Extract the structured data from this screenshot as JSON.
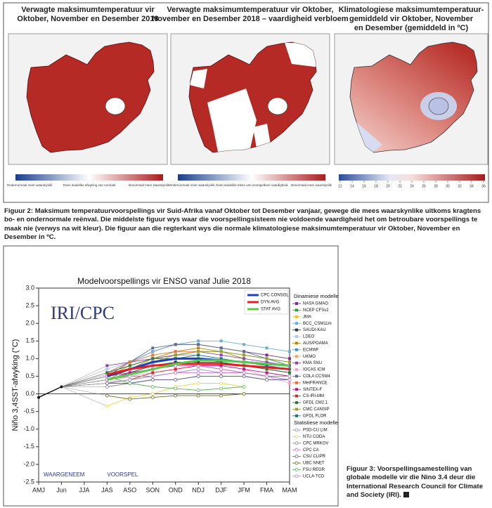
{
  "figure2": {
    "panels": [
      {
        "title": [
          "Verwagte maksimumtemperatuur vir",
          "Oktober, November en Desember 2018"
        ],
        "colorbar_labels": [
          "Ondernormaal meer waarskynlik",
          "Geen duidelike afwyking van normaal",
          "Bonormaal meer waarskynlik"
        ]
      },
      {
        "title": [
          "Verwagte maksimumtemperatuur vir Oktober,",
          "November en Desember 2018 – vaardigheid verbloem"
        ],
        "colorbar_labels": [
          "Ondernormaal meer waarskynlik",
          "Geen duidelike teken van voorspelbare vaardigheid",
          "Bonormaal meer waarskynlik"
        ]
      },
      {
        "title": [
          "Klimatologiese maksimumtemperatuur-",
          "gemiddeld vir Oktober, November",
          "en Desember (gemiddeld in ºC)"
        ],
        "colorbar_ticks": [
          12,
          14,
          16,
          18,
          20,
          22,
          24,
          26,
          28,
          30,
          32,
          34,
          36
        ]
      }
    ],
    "caption": "Figuur 2: Maksimum temperatuurvoorspellings vir Suid-Afrika vanaf Oktober tot Desember vanjaar, gewege die mees waarskynlike uitkoms kragtens bo- en ondernormale reënval. Die middelste figuur wys waar die voorspellingsisteem nie voldoende vaardigheid het om betroubare voorspellings te maak nie (verwys na wit kleur). Die figuur aan die regterkant wys die normale klimatologiese maksimumtemperatuur vir Oktober, November en Desember in ºC."
  },
  "figure3_caption": "Figuur 3: Voorspellingsamestelling van globale modelle vir die Nino 3.4 deur die International Research Council for Climate and Society (IRI).",
  "chart_data": {
    "type": "line",
    "title": "Modelvoorspellings vir ENSO vanaf Julie 2018",
    "y_label": "Niño 3,4SST-afwyking (°C)",
    "annotations": [
      "IRI/CPC",
      "WAARGENEEM",
      "VOORSPEL"
    ],
    "legend_titles": [
      "Dinamiese modelle",
      "Statistiese modelle"
    ],
    "categories": [
      "AMJ",
      "Jun",
      "JJA",
      "JAS",
      "ASO",
      "SON",
      "OND",
      "NDJ",
      "DJF",
      "JFM",
      "FMA",
      "MAM"
    ],
    "ylim": [
      -2.5,
      3.0
    ],
    "yticks": [
      -2.5,
      {
        "value": -2,
        "label": "-2.0"
      },
      -1.5,
      {
        "value": -1,
        "label": "-1.0"
      },
      -0.5,
      {
        "value": 0,
        "label": "0.0"
      },
      0.5,
      {
        "value": 1,
        "label": "1.0"
      },
      1.5,
      {
        "value": 2,
        "label": "2.0"
      },
      2.5,
      {
        "value": 3,
        "label": "3.0"
      }
    ],
    "zero_line": true,
    "observed": [
      -0.1,
      0.2,
      null,
      null,
      null,
      null,
      null,
      null,
      null,
      null,
      null,
      null
    ],
    "series": [
      {
        "name": "CPC CONSOL",
        "color": "#1f3fbf",
        "width": 3,
        "values": [
          null,
          null,
          null,
          0.5,
          0.7,
          0.9,
          1.0,
          1.0,
          0.95,
          0.9,
          0.85,
          0.8
        ]
      },
      {
        "name": "DYN AVG",
        "color": "#e02020",
        "width": 3,
        "values": [
          null,
          null,
          null,
          0.55,
          0.7,
          0.8,
          0.85,
          0.85,
          0.85,
          0.8,
          0.75,
          0.7
        ]
      },
      {
        "name": "STAT AVG",
        "color": "#5cc84c",
        "width": 3,
        "values": [
          null,
          null,
          null,
          0.4,
          0.55,
          0.7,
          0.85,
          0.95,
          0.95,
          0.9,
          0.85,
          0.8
        ]
      },
      {
        "name": "NASA GMAO",
        "group": 0,
        "color": "#7b2d8e",
        "values": [
          null,
          null,
          null,
          0.6,
          0.9,
          1.2,
          1.4,
          1.4,
          1.3,
          1.2,
          1.1,
          1.0
        ]
      },
      {
        "name": "NCEP CFSv2",
        "group": 0,
        "color": "#2ca02c",
        "values": [
          null,
          null,
          null,
          0.5,
          0.8,
          1.0,
          1.1,
          1.2,
          1.2,
          1.1,
          1.0,
          0.9
        ]
      },
      {
        "name": "JMA",
        "group": 0,
        "color": "#f0c020",
        "values": [
          null,
          null,
          null,
          0.5,
          0.7,
          0.9,
          1.0,
          1.0,
          null,
          null,
          null,
          null
        ]
      },
      {
        "name": "BCC_CSM11m",
        "group": 0,
        "color": "#6baed6",
        "values": [
          null,
          null,
          null,
          0.6,
          0.9,
          1.2,
          1.4,
          1.5,
          1.5,
          1.4,
          1.3,
          1.2
        ]
      },
      {
        "name": "SAUDI-KAU",
        "group": 0,
        "color": "#333355",
        "values": [
          null,
          null,
          null,
          0.4,
          0.6,
          0.8,
          0.9,
          0.9,
          0.9,
          0.8,
          0.7,
          0.6
        ]
      },
      {
        "name": "LDEO",
        "group": 0,
        "color": "#a9c9e8",
        "values": [
          null,
          null,
          null,
          0.7,
          0.9,
          1.0,
          1.1,
          1.1,
          1.0,
          0.9,
          0.8,
          0.7
        ]
      },
      {
        "name": "AUS/POAMA",
        "group": 0,
        "color": "#b8860b",
        "values": [
          null,
          null,
          null,
          0.4,
          0.7,
          1.0,
          1.2,
          1.3,
          1.2,
          1.0,
          null,
          null
        ]
      },
      {
        "name": "ECMWF",
        "group": 0,
        "color": "#4a90d9",
        "values": [
          null,
          null,
          null,
          0.6,
          0.8,
          1.0,
          1.1,
          1.1,
          null,
          null,
          null,
          null
        ]
      },
      {
        "name": "UKMO",
        "group": 0,
        "color": "#f4a460",
        "values": [
          null,
          null,
          null,
          0.5,
          0.8,
          1.0,
          1.1,
          1.1,
          null,
          null,
          null,
          null
        ]
      },
      {
        "name": "KMA SNU",
        "group": 0,
        "color": "#8e44ad",
        "values": [
          null,
          null,
          null,
          0.8,
          0.9,
          1.0,
          1.1,
          1.2,
          1.1,
          1.0,
          0.9,
          0.8
        ]
      },
      {
        "name": "IOCAS ICM",
        "group": 0,
        "color": "#f4a6c8",
        "values": [
          null,
          null,
          null,
          0.3,
          0.5,
          0.6,
          0.7,
          0.8,
          0.8,
          0.7,
          0.5,
          0.3
        ]
      },
      {
        "name": "COLA CCSM4",
        "group": 0,
        "color": "#5b6f8f",
        "values": [
          null,
          null,
          null,
          0.5,
          0.9,
          1.3,
          1.4,
          1.4,
          1.3,
          1.2,
          1.0,
          0.8
        ]
      },
      {
        "name": "MetFRANCE",
        "group": 0,
        "color": "#e8743b",
        "values": [
          null,
          null,
          null,
          0.6,
          0.9,
          1.1,
          1.2,
          1.2,
          null,
          null,
          null,
          null
        ]
      },
      {
        "name": "SINTEX-F",
        "group": 0,
        "color": "#c0138c",
        "values": [
          null,
          null,
          null,
          0.5,
          0.6,
          0.7,
          0.8,
          0.8,
          0.8,
          0.7,
          0.6,
          0.5
        ]
      },
      {
        "name": "CS-IRI-MM",
        "group": 0,
        "color": "#d62728",
        "values": [
          null,
          null,
          null,
          0.3,
          0.4,
          0.6,
          0.7,
          0.8,
          0.7,
          0.6,
          0.5,
          0.5
        ]
      },
      {
        "name": "GFDL CM2.1",
        "group": 0,
        "color": "#2e7d32",
        "values": [
          null,
          null,
          null,
          0.6,
          0.8,
          1.0,
          1.0,
          1.0,
          0.9,
          0.8,
          0.7,
          0.6
        ]
      },
      {
        "name": "CMC CANSIP",
        "group": 0,
        "color": "#9aa02a",
        "values": [
          null,
          null,
          null,
          0.4,
          0.7,
          0.9,
          1.1,
          1.2,
          1.2,
          1.1,
          1.0,
          0.9
        ]
      },
      {
        "name": "GFDL FLOR",
        "group": 0,
        "color": "#17778a",
        "values": [
          null,
          null,
          null,
          0.5,
          0.7,
          0.9,
          1.0,
          1.1,
          1.0,
          0.9,
          0.8,
          0.7
        ]
      },
      {
        "name": "PSD-CU LIM",
        "group": 1,
        "color": "#8c8cc8",
        "values": [
          null,
          null,
          null,
          0.3,
          0.4,
          0.5,
          0.6,
          0.7,
          0.6,
          0.6,
          0.5,
          0.4
        ]
      },
      {
        "name": "NTU CODA",
        "group": 1,
        "color": "#e6d84c",
        "values": [
          null,
          null,
          null,
          -0.35,
          -0.1,
          0.0,
          0.2,
          0.3,
          0.3,
          0.2,
          null,
          null
        ]
      },
      {
        "name": "CPC MRKOV",
        "group": 1,
        "color": "#888888",
        "values": [
          null,
          null,
          null,
          0.2,
          0.3,
          0.4,
          0.4,
          0.5,
          0.5,
          0.5,
          0.4,
          0.4
        ]
      },
      {
        "name": "CPC CA",
        "group": 1,
        "color": "#d070d0",
        "values": [
          null,
          null,
          null,
          0.4,
          0.5,
          0.5,
          0.6,
          0.6,
          0.6,
          0.6,
          0.5,
          0.5
        ]
      },
      {
        "name": "CSU CLIPR",
        "group": 1,
        "color": "#6060a0",
        "values": [
          null,
          null,
          null,
          0.3,
          0.3,
          0.4,
          0.4,
          0.5,
          0.5,
          0.5,
          0.4,
          0.4
        ]
      },
      {
        "name": "UBC NNET",
        "group": 1,
        "color": "#6b6b20",
        "values": [
          null,
          null,
          null,
          -0.05,
          -0.15,
          -0.1,
          -0.05,
          -0.05,
          -0.05,
          0.0,
          null,
          null
        ]
      },
      {
        "name": "FSU REGR",
        "group": 1,
        "color": "#5cb85c",
        "values": [
          null,
          null,
          null,
          0.5,
          0.3,
          0.2,
          0.15,
          0.1,
          0.15,
          0.2,
          null,
          null
        ]
      },
      {
        "name": "UCLA-TCD",
        "group": 1,
        "color": "#c07bd0",
        "values": [
          null,
          null,
          null,
          0.5,
          0.7,
          0.8,
          0.8,
          0.8,
          0.7,
          0.6,
          0.5,
          0.4
        ]
      }
    ]
  }
}
